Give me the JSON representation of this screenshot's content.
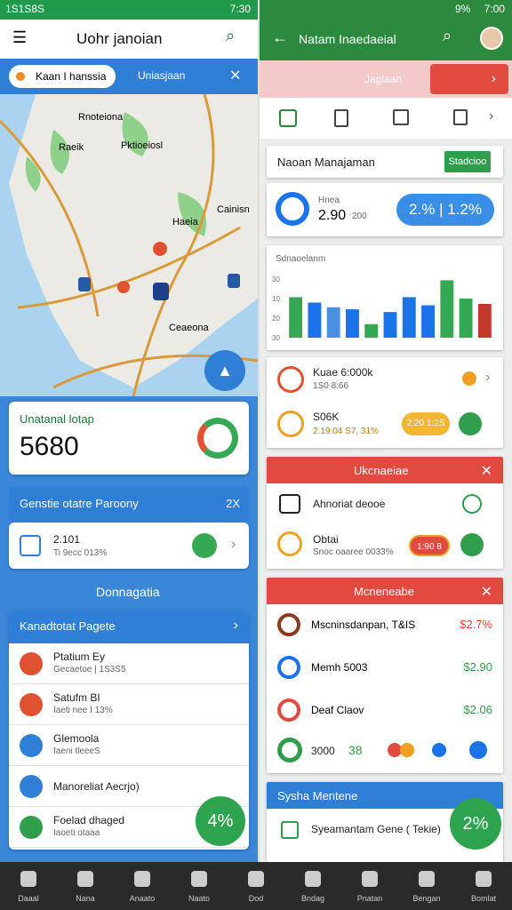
{
  "left": {
    "status": {
      "left": "1S1S8S",
      "right": "7:30"
    },
    "header": {
      "title": "Uohr janoian"
    },
    "search": {
      "location": "Kaan I hanssia",
      "tab": "Uniasjaan"
    },
    "map_labels": [
      "Rnoteiona",
      "Raeik",
      "Pktioeiosl",
      "Haeia",
      "Cainisn",
      "Ceaeona"
    ],
    "summary": {
      "title": "Unatanal lotap",
      "value": "5680"
    },
    "banner": {
      "title": "Genstie otatre Paroony",
      "badge": "2X"
    },
    "item": {
      "title": "2.101",
      "subtitle": "Ti 9ecc 013%"
    },
    "section": "Donnagatia",
    "list": {
      "title": "Kanadtotat Pagete",
      "items": [
        {
          "title": "Ptatium Ey",
          "subtitle": "Gecaetoe | 1S3S5"
        },
        {
          "title": "Satufm BI",
          "subtitle": "Iaeti nee I 13%"
        },
        {
          "title": "Glemoola",
          "subtitle": "Iaeni tleeeS"
        },
        {
          "title": "Manoreliat Aecrjo)",
          "subtitle": ""
        },
        {
          "title": "Foelad dhaged",
          "subtitle": "Iaoeti otaaa"
        }
      ]
    },
    "fab": "4%"
  },
  "right": {
    "status": {
      "left": "9%",
      "right": "7:00"
    },
    "header": {
      "title": "Natam Inaedaeial"
    },
    "tab": "Jaglaan",
    "card": {
      "title": "Naoan Manajaman",
      "button": "Stadcioo"
    },
    "stats": {
      "label": "Hnea",
      "value": "2.90",
      "sub": "200",
      "pill": "2.% | 1.2%"
    },
    "chart": {
      "title": "Sdnaoelanm",
      "ytick_labels": [
        "30",
        "10",
        "20",
        "30"
      ],
      "ylim": [
        0,
        100
      ],
      "bars": [
        {
          "value": 60,
          "color": "#34a853"
        },
        {
          "value": 52,
          "color": "#1a73e8"
        },
        {
          "value": 45,
          "color": "#4a90e2"
        },
        {
          "value": 42,
          "color": "#1a73e8"
        },
        {
          "value": 20,
          "color": "#34a853"
        },
        {
          "value": 38,
          "color": "#1a73e8"
        },
        {
          "value": 60,
          "color": "#1a73e8"
        },
        {
          "value": 48,
          "color": "#1a73e8"
        },
        {
          "value": 85,
          "color": "#34a853"
        },
        {
          "value": 58,
          "color": "#34a853"
        },
        {
          "value": 50,
          "color": "#c0392b"
        }
      ]
    },
    "rows": [
      {
        "title": "Kuae 6:000k",
        "subtitle": "1S0 8:66"
      },
      {
        "title": "S06K",
        "subtitle": "2.19:04 S7, 31%",
        "pill": "2:20 1:2S"
      }
    ],
    "alert": {
      "title": "Ukcnaeiae",
      "items": [
        {
          "title": "Ahnoriat deooe"
        },
        {
          "title": "Obtai",
          "subtitle": "Snoc oaaree 0033%",
          "pill": "1:90 8"
        }
      ]
    },
    "finance": {
      "title": "Mcneneabe",
      "items": [
        {
          "title": "Mscninsdanpan, T&IS",
          "amount": "$2.7%"
        },
        {
          "title": "Memh 5003",
          "amount": "$2.90"
        },
        {
          "title": "Deaf Claov",
          "amount": "$2.06"
        }
      ],
      "footer": [
        "3000",
        "38"
      ]
    },
    "system": {
      "title": "Sysha Mentene",
      "item": "Syeamantam Gene ( Tekie)"
    },
    "fab": "2%"
  },
  "nav": [
    "Daaal",
    "Nana",
    "Anaato",
    "Naato",
    "Dod",
    "Bndag",
    "Pnatan",
    "Bengan",
    "Bomlat"
  ]
}
